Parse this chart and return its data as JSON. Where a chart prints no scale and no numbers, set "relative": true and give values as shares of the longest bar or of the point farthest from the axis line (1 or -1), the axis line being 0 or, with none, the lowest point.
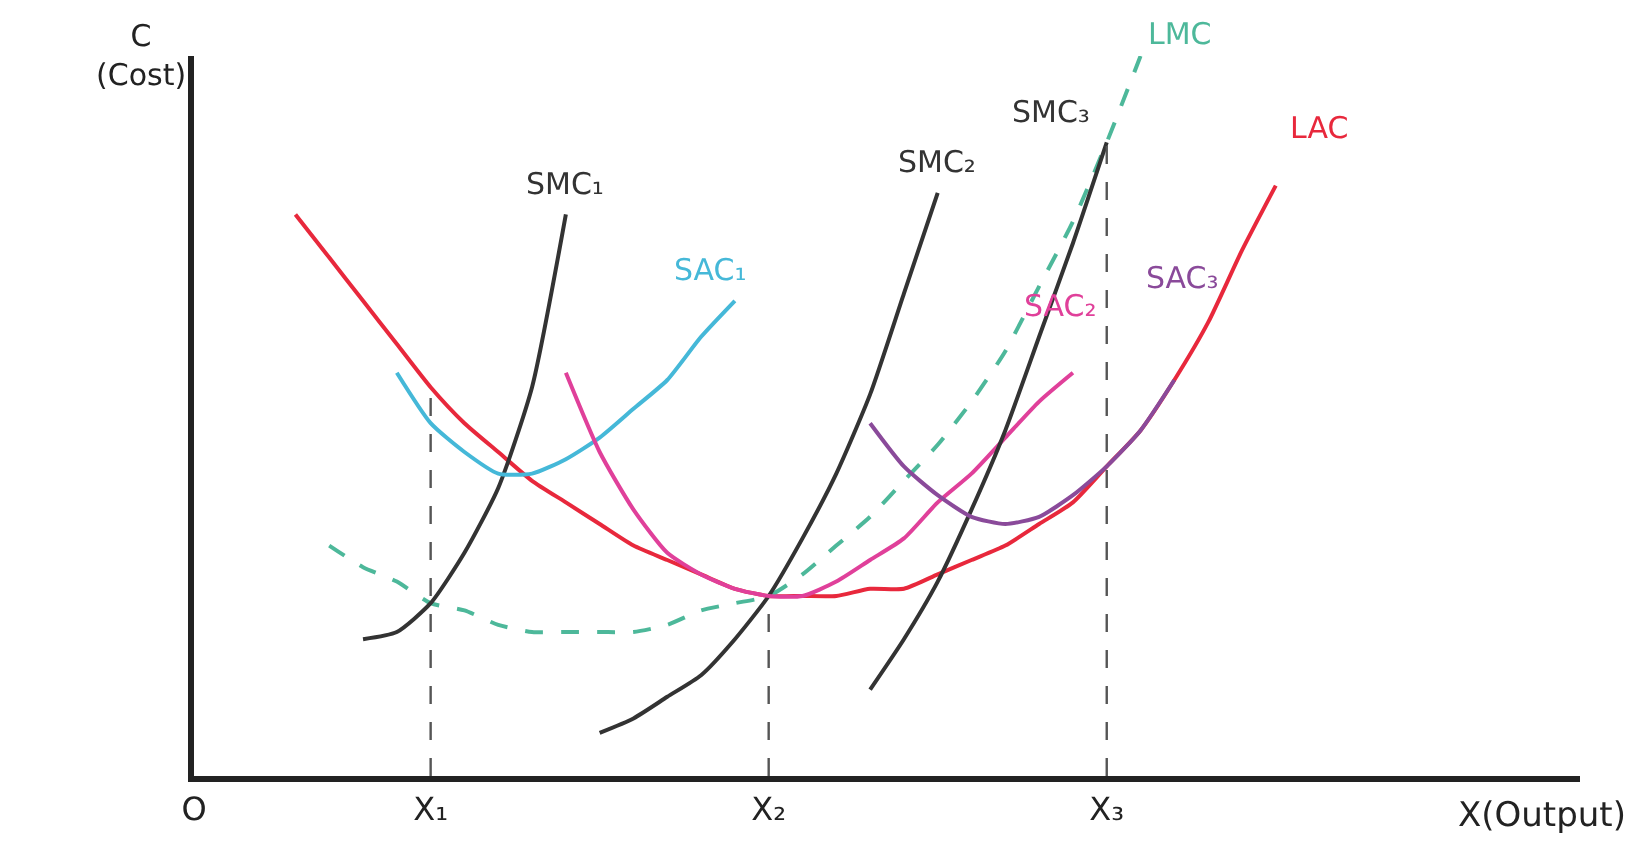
{
  "chart_data": {
    "type": "line",
    "relative": true,
    "xlabel": "X(Output)",
    "ylabel": "C\n(Cost)",
    "legend": false,
    "marker": "none",
    "line_style": "solid",
    "categories": [
      "O",
      null,
      null,
      null,
      null,
      null,
      null,
      "X₁",
      null,
      null,
      null,
      null,
      null,
      null,
      null,
      null,
      null,
      "X₂",
      null,
      null,
      null,
      null,
      null,
      null,
      null,
      null,
      null,
      "X₃",
      null,
      null,
      null,
      null,
      null,
      null,
      null,
      null,
      null,
      null,
      null,
      null,
      null,
      null
    ],
    "ref_lines": [
      {
        "axis": "x",
        "value": "X₁",
        "color": "#555555",
        "line_style": "dashed"
      },
      {
        "axis": "x",
        "value": "X₂",
        "color": "#555555",
        "line_style": "dashed"
      },
      {
        "axis": "x",
        "value": "X₃",
        "color": "#555555",
        "line_style": "dashed"
      }
    ],
    "series": [
      {
        "name": "LAC",
        "color": "#e8283c",
        "values": [
          null,
          null,
          null,
          0.78,
          0.72,
          0.66,
          0.6,
          0.54,
          0.49,
          0.45,
          0.41,
          0.38,
          0.35,
          0.32,
          0.3,
          0.28,
          0.26,
          0.25,
          0.25,
          0.25,
          0.26,
          0.26,
          0.28,
          0.3,
          0.32,
          0.35,
          0.38,
          0.43,
          0.48,
          0.55,
          0.63,
          0.73,
          0.82,
          null,
          null,
          null,
          null,
          null,
          null,
          null,
          null,
          null
        ]
      },
      {
        "name": "LMC",
        "color": "#4db89a",
        "line_style": "dashed",
        "values": [
          null,
          null,
          null,
          null,
          0.32,
          0.29,
          0.27,
          0.24,
          0.23,
          0.21,
          0.2,
          0.2,
          0.2,
          0.2,
          0.21,
          0.23,
          0.24,
          0.25,
          0.28,
          0.32,
          0.36,
          0.41,
          0.46,
          0.52,
          0.59,
          0.68,
          0.77,
          0.88,
          1.0,
          null,
          null,
          null,
          null,
          null,
          null,
          null,
          null,
          null,
          null,
          null,
          null,
          null
        ]
      },
      {
        "name": "SMC₁",
        "color": "#333333",
        "values": [
          null,
          null,
          null,
          null,
          null,
          0.19,
          0.2,
          0.24,
          0.31,
          0.4,
          0.54,
          0.78,
          null,
          null,
          null,
          null,
          null,
          null,
          null,
          null,
          null,
          null,
          null,
          null,
          null,
          null,
          null,
          null,
          null,
          null,
          null,
          null,
          null,
          null,
          null,
          null,
          null,
          null,
          null,
          null,
          null,
          null
        ]
      },
      {
        "name": "SAC₁",
        "color": "#45b8d8",
        "values": [
          null,
          null,
          null,
          null,
          null,
          null,
          0.56,
          0.49,
          0.45,
          0.42,
          0.42,
          0.44,
          0.47,
          0.51,
          0.55,
          0.61,
          0.66,
          null,
          null,
          null,
          null,
          null,
          null,
          null,
          null,
          null,
          null,
          null,
          null,
          null,
          null,
          null,
          null,
          null,
          null,
          null,
          null,
          null,
          null,
          null,
          null,
          null
        ]
      },
      {
        "name": "SMC₂",
        "color": "#333333",
        "values": [
          null,
          null,
          null,
          null,
          null,
          null,
          null,
          null,
          null,
          null,
          null,
          null,
          0.06,
          0.08,
          0.11,
          0.14,
          0.19,
          0.25,
          0.33,
          0.42,
          0.53,
          0.67,
          0.81,
          null,
          null,
          null,
          null,
          null,
          null,
          null,
          null,
          null,
          null,
          null,
          null,
          null,
          null,
          null,
          null,
          null,
          null,
          null
        ]
      },
      {
        "name": "SAC₂",
        "color": "#e0409a",
        "values": [
          null,
          null,
          null,
          null,
          null,
          null,
          null,
          null,
          null,
          null,
          null,
          0.56,
          0.45,
          0.37,
          0.31,
          0.28,
          0.26,
          0.25,
          0.25,
          0.27,
          0.3,
          0.33,
          0.38,
          0.42,
          0.47,
          0.52,
          0.56,
          null,
          null,
          null,
          null,
          null,
          null,
          null,
          null,
          null,
          null,
          null,
          null,
          null,
          null,
          null
        ]
      },
      {
        "name": "SMC₃",
        "color": "#333333",
        "values": [
          null,
          null,
          null,
          null,
          null,
          null,
          null,
          null,
          null,
          null,
          null,
          null,
          null,
          null,
          null,
          null,
          null,
          null,
          null,
          null,
          0.12,
          0.19,
          0.27,
          0.37,
          0.48,
          0.61,
          0.74,
          0.88,
          null,
          null,
          null,
          null,
          null,
          null,
          null,
          null,
          null,
          null,
          null,
          null,
          null,
          null
        ]
      },
      {
        "name": "SAC₃",
        "color": "#8a4a9a",
        "values": [
          null,
          null,
          null,
          null,
          null,
          null,
          null,
          null,
          null,
          null,
          null,
          null,
          null,
          null,
          null,
          null,
          null,
          null,
          null,
          null,
          0.49,
          0.43,
          0.39,
          0.36,
          0.35,
          0.36,
          0.39,
          0.43,
          0.48,
          0.55,
          null,
          null,
          null,
          null,
          null,
          null,
          null,
          null,
          null,
          null,
          null,
          null
        ]
      }
    ]
  }
}
